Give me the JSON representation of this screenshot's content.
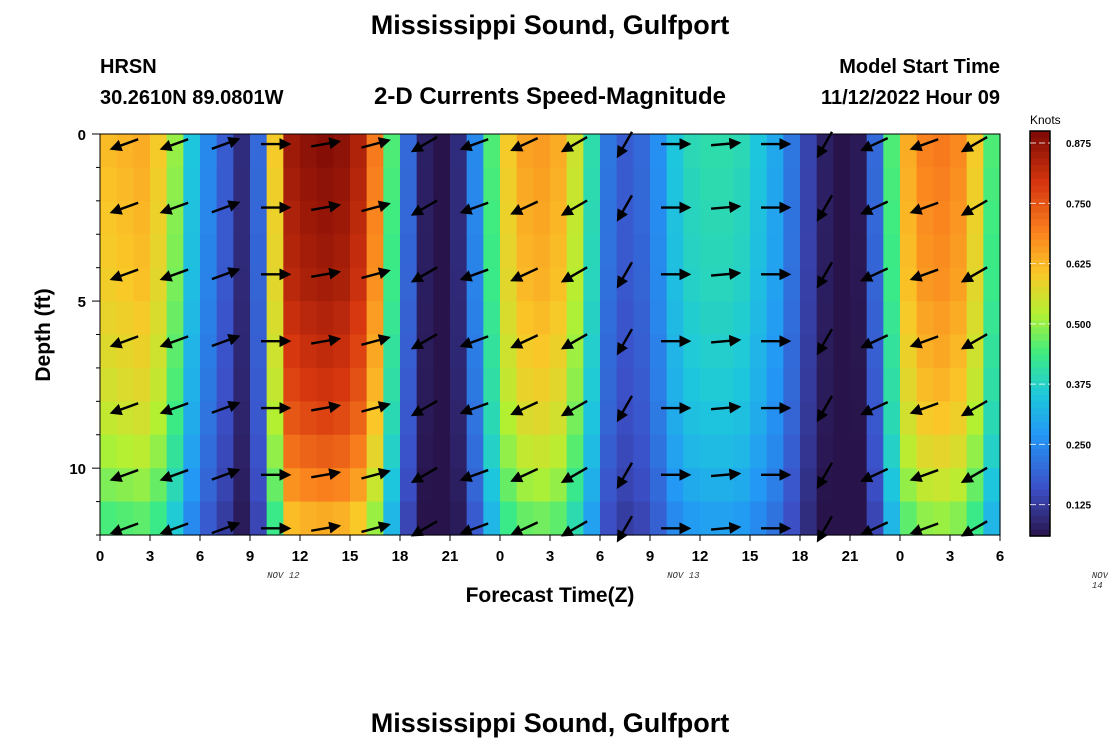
{
  "title": "Mississippi Sound, Gulfport",
  "station": {
    "name": "HRSN",
    "coords": "30.2610N  89.0801W"
  },
  "subtitle": "2-D Currents Speed-Magnitude",
  "model": {
    "label": "Model Start Time",
    "value": "11/12/2022 Hour 09"
  },
  "bottom_title": "Mississippi Sound, Gulfport",
  "chart_data": {
    "type": "heatmap",
    "title": "2-D Currents Speed-Magnitude",
    "xlabel": "Forecast Time(Z)",
    "ylabel": "Depth (ft)",
    "x_ticks": [
      "0",
      "3",
      "6",
      "9",
      "12",
      "15",
      "18",
      "21",
      "0",
      "3",
      "6",
      "9",
      "12",
      "15",
      "18",
      "21",
      "0",
      "3",
      "6"
    ],
    "date_labels": [
      {
        "text": "NOV 12",
        "hour": 11
      },
      {
        "text": "NOV 13",
        "hour": 35
      },
      {
        "text": "NOV 14",
        "hour": 60
      }
    ],
    "y_ticks": [
      "0",
      "5",
      "10"
    ],
    "y_tick_values": [
      0,
      5,
      10
    ],
    "ylim": [
      0,
      12
    ],
    "xlim": [
      0,
      54
    ],
    "colorbar": {
      "title": "Knots",
      "ticks": [
        "0.875",
        "0.750",
        "0.625",
        "0.500",
        "0.375",
        "0.250",
        "0.125"
      ],
      "tick_values": [
        0.875,
        0.75,
        0.625,
        0.5,
        0.375,
        0.25,
        0.125
      ],
      "range": [
        0.06,
        0.9
      ]
    },
    "speed_by_hour": [
      0.62,
      0.63,
      0.64,
      0.6,
      0.5,
      0.35,
      0.25,
      0.18,
      0.1,
      0.2,
      0.6,
      0.86,
      0.88,
      0.89,
      0.88,
      0.84,
      0.7,
      0.45,
      0.2,
      0.08,
      0.06,
      0.1,
      0.25,
      0.45,
      0.6,
      0.65,
      0.66,
      0.64,
      0.55,
      0.4,
      0.22,
      0.18,
      0.2,
      0.26,
      0.35,
      0.39,
      0.4,
      0.4,
      0.39,
      0.35,
      0.3,
      0.22,
      0.14,
      0.08,
      0.05,
      0.07,
      0.2,
      0.45,
      0.64,
      0.69,
      0.7,
      0.68,
      0.6,
      0.45,
      0.3
    ],
    "depth_attenuation": [
      1.0,
      0.99,
      0.98,
      0.97,
      0.96,
      0.94,
      0.92,
      0.9,
      0.87,
      0.83,
      0.78,
      0.72
    ],
    "vector_depths": [
      0.3,
      2.2,
      4.2,
      6.2,
      8.2,
      10.2,
      11.8
    ],
    "vector_hours": [
      1.5,
      4.5,
      7.5,
      10.5,
      13.5,
      16.5,
      19.5,
      22.5,
      25.5,
      28.5,
      31.5,
      34.5,
      37.5,
      40.5,
      43.5,
      46.5,
      49.5,
      52.5
    ],
    "vector_direction_deg_by_hour": [
      200,
      200,
      20,
      0,
      10,
      15,
      210,
      200,
      205,
      210,
      240,
      0,
      5,
      0,
      240,
      205,
      200,
      210
    ]
  }
}
